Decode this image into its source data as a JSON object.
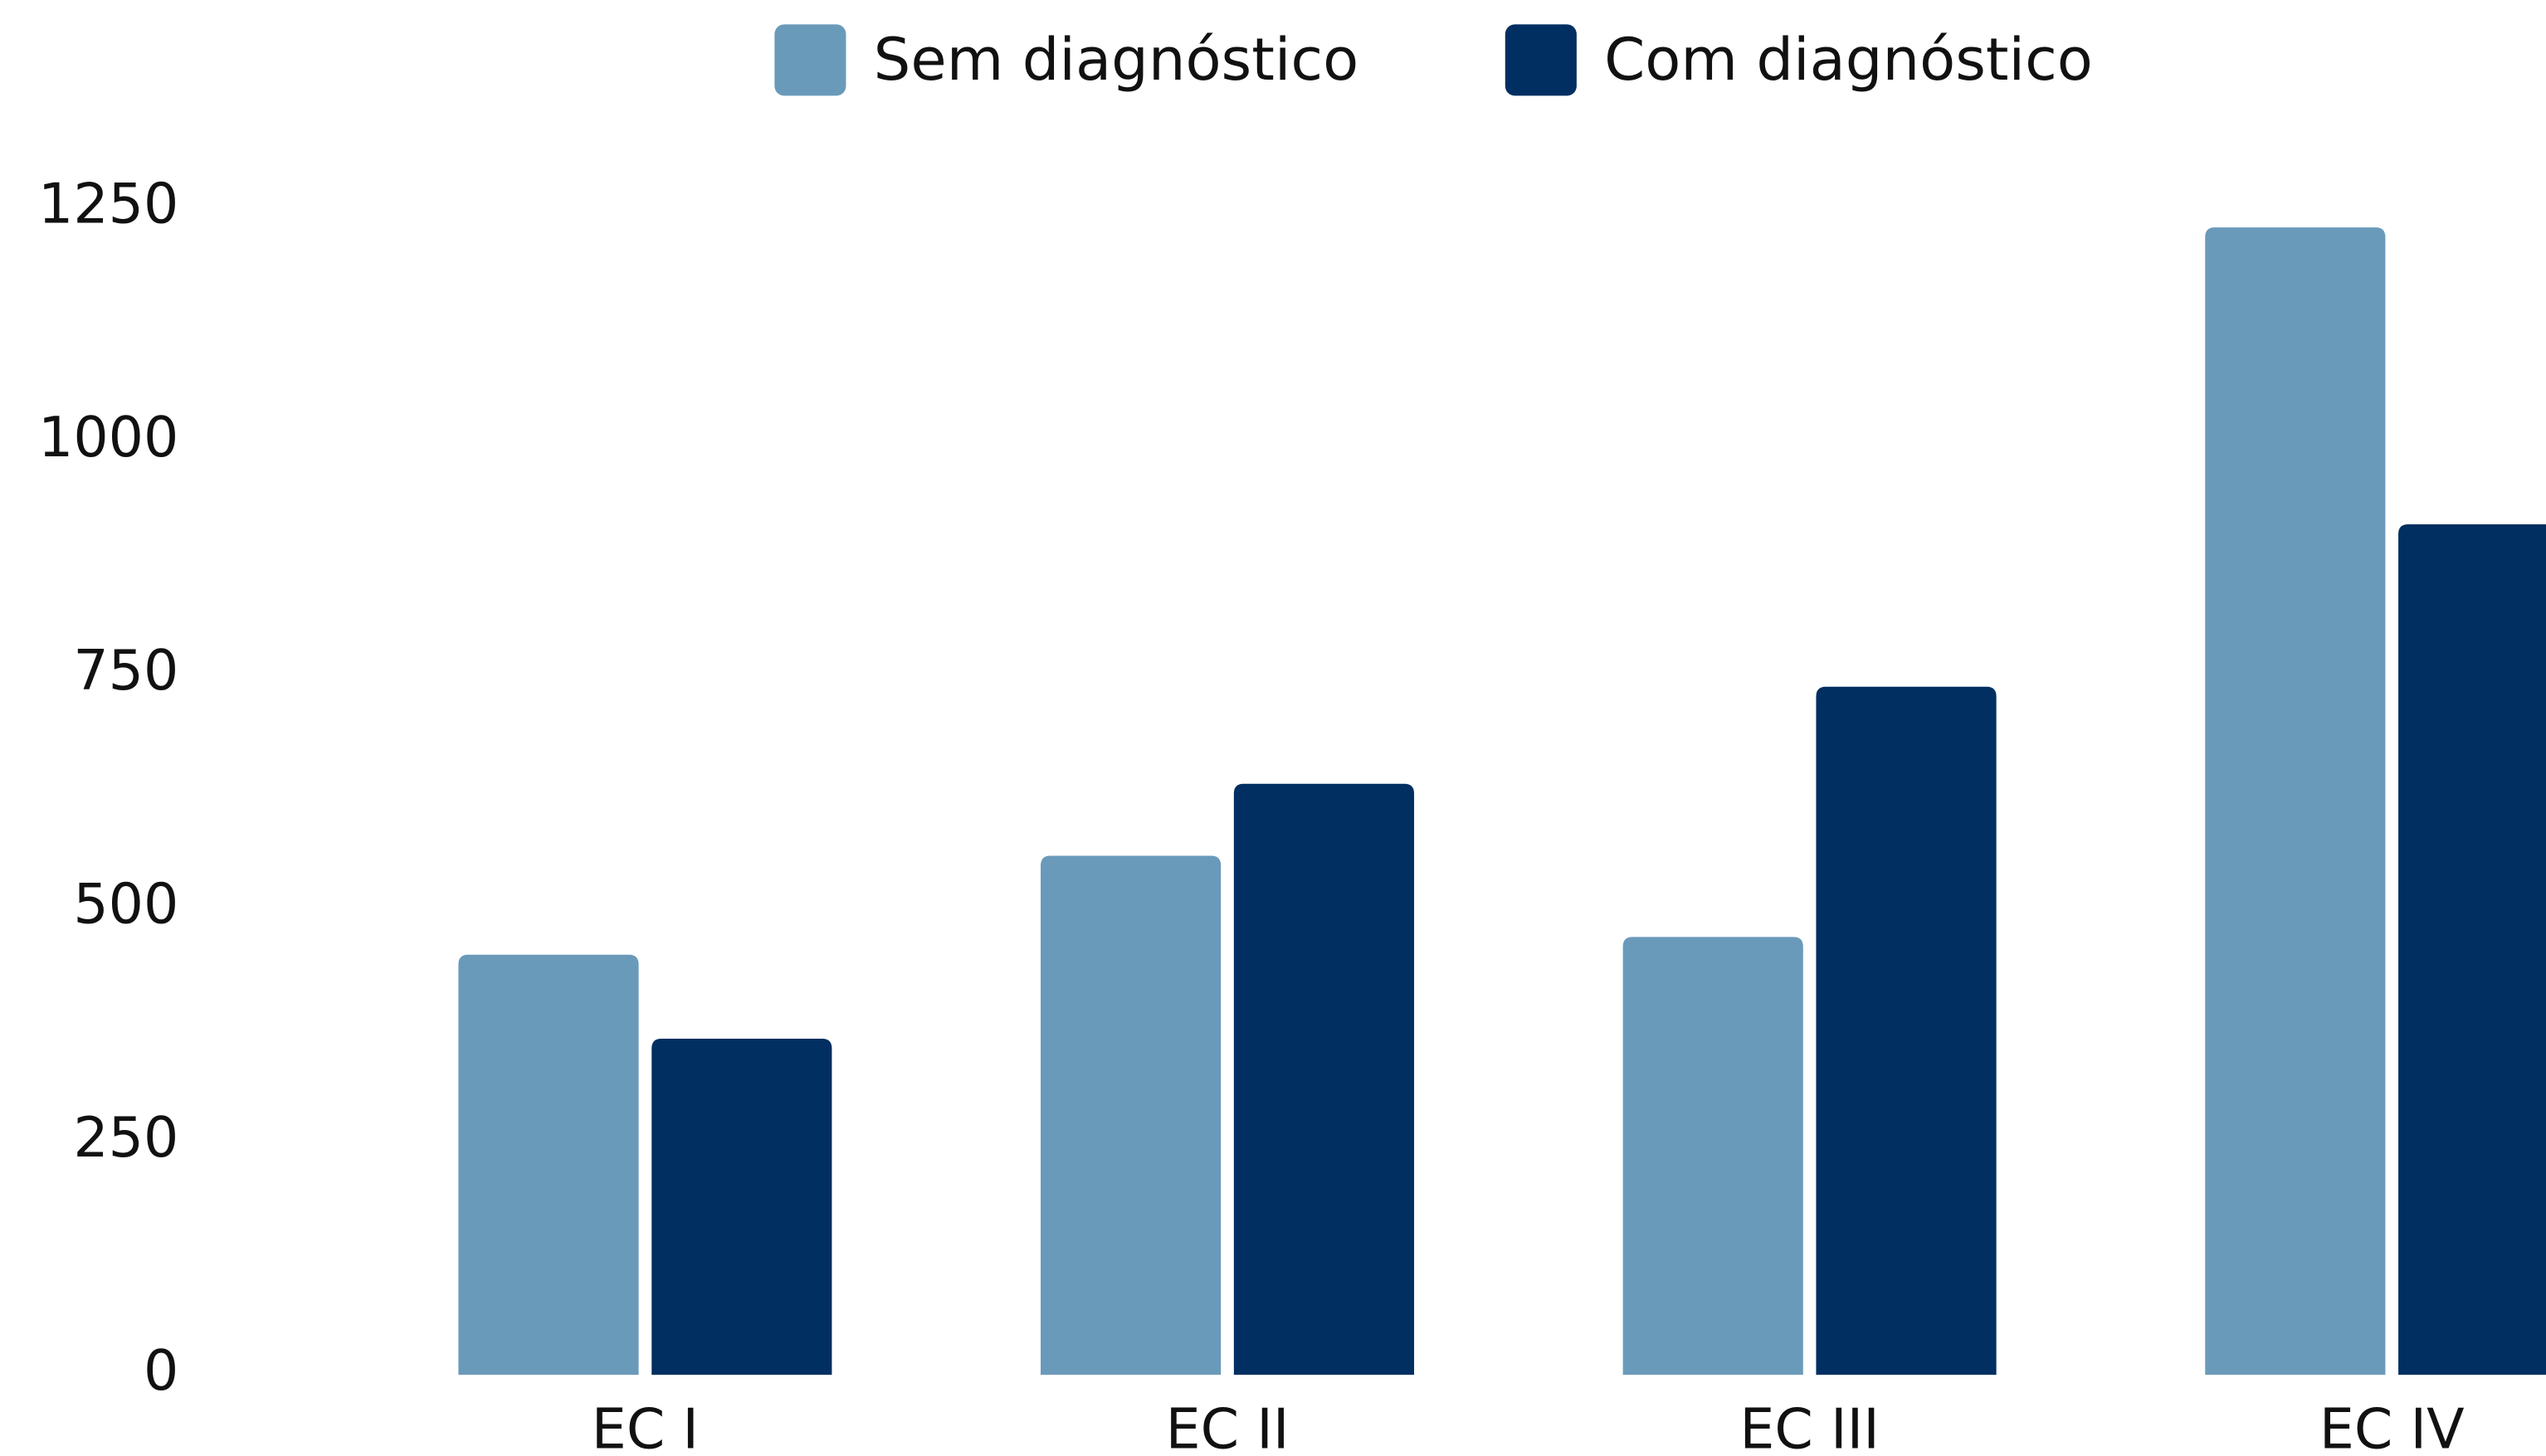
{
  "chart_data": {
    "type": "bar",
    "categories": [
      "EC I",
      "EC II",
      "EC III",
      "EC IV"
    ],
    "series": [
      {
        "name": "Sem diagnóstico",
        "color": "#6a9aba",
        "values": [
          450,
          556,
          469,
          1229
        ]
      },
      {
        "name": "Com diagnóstico",
        "color": "#012f61",
        "values": [
          360,
          633,
          737,
          911
        ]
      }
    ],
    "ylim": [
      0,
      1250
    ],
    "yticks": [
      0,
      250,
      500,
      750,
      1000,
      1250
    ],
    "grid": false
  }
}
